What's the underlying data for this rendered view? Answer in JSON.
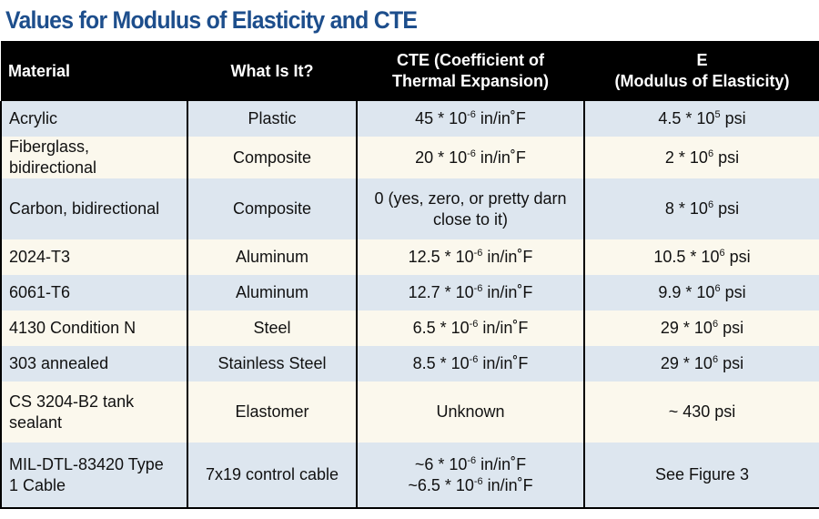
{
  "title": "Values for Modulus of Elasticity and CTE",
  "table": {
    "headers": [
      [
        "Material"
      ],
      [
        "What Is It?"
      ],
      [
        "CTE (Coefficient of",
        "Thermal Expansion)"
      ],
      [
        "E",
        "(Modulus of Elasticity)"
      ]
    ],
    "rows": [
      {
        "material": [
          "Acrylic"
        ],
        "what": "Plastic",
        "cte": [
          {
            "pre": "45 * 10",
            "sup": "-6",
            "post": " in/in˚F"
          }
        ],
        "e": [
          {
            "pre": "4.5 * 10",
            "sup": "5",
            "post": " psi"
          }
        ]
      },
      {
        "material": [
          "Fiberglass, bidirectional"
        ],
        "what": "Composite",
        "cte": [
          {
            "pre": "20 * 10",
            "sup": "-6",
            "post": " in/in˚F"
          }
        ],
        "e": [
          {
            "pre": "2 * 10",
            "sup": "6",
            "post": " psi"
          }
        ]
      },
      {
        "material": [
          "Carbon, bidirectional"
        ],
        "what": "Composite",
        "cte": [
          {
            "pre": "0 (yes, zero, or pretty darn",
            "sup": "",
            "post": ""
          },
          {
            "pre": "close to it)",
            "sup": "",
            "post": ""
          }
        ],
        "e": [
          {
            "pre": "8 * 10",
            "sup": "6",
            "post": " psi"
          }
        ]
      },
      {
        "material": [
          "2024-T3"
        ],
        "what": "Aluminum",
        "cte": [
          {
            "pre": "12.5 * 10",
            "sup": "-6",
            "post": " in/in˚F"
          }
        ],
        "e": [
          {
            "pre": "10.5 * 10",
            "sup": "6",
            "post": " psi"
          }
        ]
      },
      {
        "material": [
          "6061-T6"
        ],
        "what": "Aluminum",
        "cte": [
          {
            "pre": "12.7 * 10",
            "sup": "-6",
            "post": " in/in˚F"
          }
        ],
        "e": [
          {
            "pre": "9.9 * 10",
            "sup": "6",
            "post": " psi"
          }
        ]
      },
      {
        "material": [
          "4130 Condition N"
        ],
        "what": "Steel",
        "cte": [
          {
            "pre": "6.5 * 10",
            "sup": "-6",
            "post": " in/in˚F"
          }
        ],
        "e": [
          {
            "pre": "29 * 10",
            "sup": "6",
            "post": " psi"
          }
        ]
      },
      {
        "material": [
          "303 annealed"
        ],
        "what": "Stainless Steel",
        "cte": [
          {
            "pre": "8.5 * 10",
            "sup": "-6",
            "post": " in/in˚F"
          }
        ],
        "e": [
          {
            "pre": "29 * 10",
            "sup": "6",
            "post": " psi"
          }
        ]
      },
      {
        "material": [
          "CS 3204-B2 tank",
          "sealant"
        ],
        "what": "Elastomer",
        "cte": [
          {
            "pre": "Unknown",
            "sup": "",
            "post": ""
          }
        ],
        "e": [
          {
            "pre": "~ 430 psi",
            "sup": "",
            "post": ""
          }
        ]
      },
      {
        "material": [
          "MIL-DTL-83420 Type",
          "1 Cable"
        ],
        "what": "7x19 control cable",
        "cte": [
          {
            "pre": "~6 * 10",
            "sup": "-6",
            "post": " in/in˚F"
          },
          {
            "pre": "~6.5 * 10",
            "sup": "-6",
            "post": " in/in˚F"
          }
        ],
        "e": [
          {
            "pre": "See Figure 3",
            "sup": "",
            "post": ""
          }
        ]
      }
    ]
  },
  "colors": {
    "title": "#1d4e8c",
    "header_bg": "#000000",
    "row_blue": "#dde6ef",
    "row_cream": "#fbf8ed"
  }
}
